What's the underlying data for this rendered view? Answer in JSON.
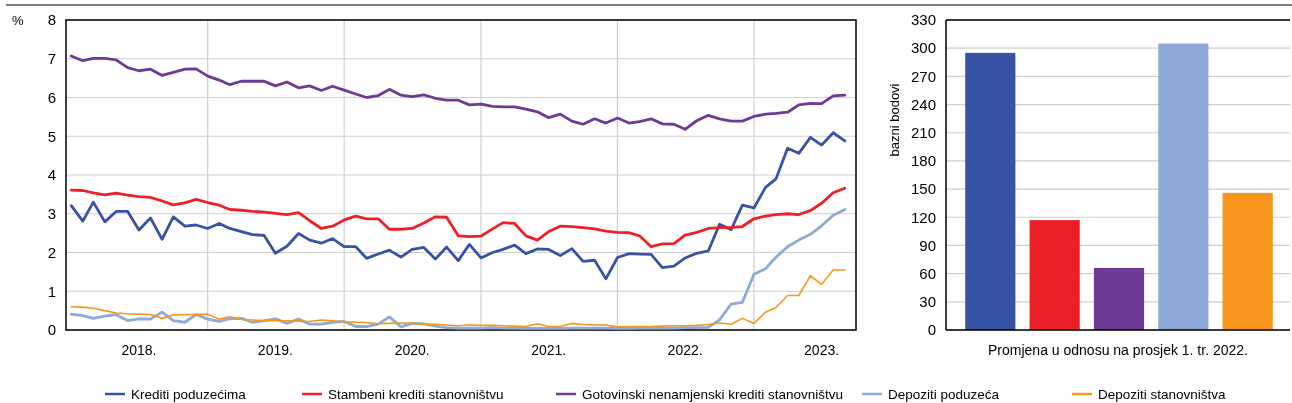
{
  "chart_data": [
    {
      "type": "line",
      "ylabel": "%",
      "legend": "bottom",
      "grid": true,
      "x": [
        "2018-01",
        "2018-02",
        "2018-03",
        "2018-04",
        "2018-05",
        "2018-06",
        "2018-07",
        "2018-08",
        "2018-09",
        "2018-10",
        "2018-11",
        "2018-12",
        "2019-01",
        "2019-02",
        "2019-03",
        "2019-04",
        "2019-05",
        "2019-06",
        "2019-07",
        "2019-08",
        "2019-09",
        "2019-10",
        "2019-11",
        "2019-12",
        "2020-01",
        "2020-02",
        "2020-03",
        "2020-04",
        "2020-05",
        "2020-06",
        "2020-07",
        "2020-08",
        "2020-09",
        "2020-10",
        "2020-11",
        "2020-12",
        "2021-01",
        "2021-02",
        "2021-03",
        "2021-04",
        "2021-05",
        "2021-06",
        "2021-07",
        "2021-08",
        "2021-09",
        "2021-10",
        "2021-11",
        "2021-12",
        "2022-01",
        "2022-02",
        "2022-03",
        "2022-04",
        "2022-05",
        "2022-06",
        "2022-07",
        "2022-08",
        "2022-09",
        "2022-10",
        "2022-11",
        "2022-12",
        "2023-01",
        "2023-02",
        "2023-03",
        "2023-04",
        "2023-05",
        "2023-06",
        "2023-07",
        "2023-08",
        "2023-09"
      ],
      "xlim": [
        "2017-12-18",
        "2023-10-01"
      ],
      "xticks": [
        {
          "value": "2018-07-01",
          "label": "2018."
        },
        {
          "value": "2019-01-01",
          "label": null
        },
        {
          "value": "2019-07-01",
          "label": "2019."
        },
        {
          "value": "2020-01-01",
          "label": null
        },
        {
          "value": "2020-07-01",
          "label": "2020."
        },
        {
          "value": "2021-01-01",
          "label": null
        },
        {
          "value": "2021-07-01",
          "label": "2021."
        },
        {
          "value": "2022-01-01",
          "label": null
        },
        {
          "value": "2022-07-01",
          "label": "2022."
        },
        {
          "value": "2023-01-01",
          "label": null
        },
        {
          "value": "2023-07-01",
          "label": "2023."
        }
      ],
      "ylim": [
        0,
        8
      ],
      "yticks": [
        0,
        1,
        2,
        3,
        4,
        5,
        6,
        7,
        8
      ],
      "series": [
        {
          "name": "Krediti poduzećima",
          "color": "#3853a4",
          "values": [
            3.21,
            2.81,
            3.3,
            2.79,
            3.06,
            3.06,
            2.58,
            2.89,
            2.34,
            2.92,
            2.68,
            2.71,
            2.62,
            2.75,
            2.62,
            2.54,
            2.46,
            2.44,
            1.98,
            2.16,
            2.49,
            2.32,
            2.24,
            2.36,
            2.15,
            2.15,
            1.85,
            1.96,
            2.06,
            1.88,
            2.08,
            2.13,
            1.83,
            2.14,
            1.79,
            2.21,
            1.86,
            2.0,
            2.08,
            2.19,
            1.97,
            2.09,
            2.08,
            1.92,
            2.1,
            1.77,
            1.8,
            1.32,
            1.87,
            1.97,
            1.96,
            1.95,
            1.61,
            1.65,
            1.86,
            1.98,
            2.04,
            2.73,
            2.59,
            3.22,
            3.15,
            3.68,
            3.9,
            4.69,
            4.56,
            4.97,
            4.77,
            5.09,
            4.88
          ]
        },
        {
          "name": "Stambeni krediti stanovništvu",
          "color": "#ed2027",
          "values": [
            3.61,
            3.6,
            3.54,
            3.49,
            3.53,
            3.48,
            3.44,
            3.42,
            3.33,
            3.23,
            3.28,
            3.37,
            3.29,
            3.22,
            3.11,
            3.09,
            3.06,
            3.04,
            3.01,
            2.98,
            3.03,
            2.82,
            2.62,
            2.68,
            2.84,
            2.94,
            2.87,
            2.87,
            2.6,
            2.6,
            2.62,
            2.76,
            2.92,
            2.91,
            2.43,
            2.41,
            2.42,
            2.61,
            2.77,
            2.75,
            2.43,
            2.32,
            2.54,
            2.68,
            2.67,
            2.64,
            2.61,
            2.55,
            2.52,
            2.51,
            2.43,
            2.15,
            2.22,
            2.23,
            2.45,
            2.52,
            2.62,
            2.64,
            2.65,
            2.67,
            2.87,
            2.94,
            2.98,
            3.0,
            2.98,
            3.08,
            3.27,
            3.54,
            3.66
          ]
        },
        {
          "name": "Gotovinski nenamjenski krediti stanovništvu",
          "color": "#6f3a96",
          "values": [
            7.07,
            6.95,
            7.01,
            7.01,
            6.97,
            6.77,
            6.69,
            6.73,
            6.57,
            6.65,
            6.73,
            6.74,
            6.55,
            6.45,
            6.33,
            6.42,
            6.42,
            6.42,
            6.3,
            6.4,
            6.25,
            6.3,
            6.18,
            6.29,
            6.19,
            6.09,
            6.0,
            6.05,
            6.21,
            6.06,
            6.02,
            6.07,
            5.98,
            5.93,
            5.93,
            5.81,
            5.83,
            5.77,
            5.76,
            5.76,
            5.7,
            5.63,
            5.48,
            5.57,
            5.39,
            5.31,
            5.45,
            5.34,
            5.47,
            5.34,
            5.38,
            5.45,
            5.32,
            5.31,
            5.18,
            5.4,
            5.54,
            5.45,
            5.39,
            5.39,
            5.51,
            5.57,
            5.59,
            5.62,
            5.81,
            5.85,
            5.84,
            6.04,
            6.06
          ]
        },
        {
          "name": "Depoziti poduzeća",
          "color": "#8faad6",
          "values": [
            0.41,
            0.37,
            0.3,
            0.36,
            0.4,
            0.24,
            0.29,
            0.28,
            0.46,
            0.24,
            0.2,
            0.4,
            0.28,
            0.22,
            0.29,
            0.3,
            0.2,
            0.24,
            0.29,
            0.17,
            0.28,
            0.15,
            0.15,
            0.2,
            0.22,
            0.09,
            0.09,
            0.15,
            0.34,
            0.08,
            0.17,
            0.16,
            0.1,
            0.06,
            0.05,
            0.05,
            0.05,
            0.06,
            0.05,
            0.05,
            0.04,
            0.04,
            0.04,
            0.04,
            0.05,
            0.05,
            0.05,
            0.05,
            0.04,
            0.04,
            0.05,
            0.05,
            0.05,
            0.05,
            0.06,
            0.06,
            0.07,
            0.26,
            0.67,
            0.71,
            1.44,
            1.58,
            1.88,
            2.15,
            2.32,
            2.47,
            2.69,
            2.96,
            3.11
          ]
        },
        {
          "name": "Depoziti stanovništva",
          "color": "#f7971d",
          "values": [
            0.6,
            0.59,
            0.56,
            0.5,
            0.44,
            0.42,
            0.41,
            0.4,
            0.3,
            0.39,
            0.4,
            0.4,
            0.41,
            0.28,
            0.34,
            0.27,
            0.26,
            0.24,
            0.24,
            0.24,
            0.23,
            0.22,
            0.26,
            0.24,
            0.21,
            0.2,
            0.19,
            0.16,
            0.17,
            0.18,
            0.17,
            0.15,
            0.15,
            0.13,
            0.11,
            0.13,
            0.12,
            0.12,
            0.11,
            0.1,
            0.09,
            0.16,
            0.09,
            0.09,
            0.17,
            0.14,
            0.13,
            0.13,
            0.08,
            0.09,
            0.09,
            0.09,
            0.1,
            0.11,
            0.11,
            0.12,
            0.14,
            0.18,
            0.15,
            0.3,
            0.17,
            0.46,
            0.58,
            0.89,
            0.89,
            1.4,
            1.18,
            1.55,
            1.55
          ]
        }
      ]
    },
    {
      "type": "bar",
      "xlabel": "Promjena u odnosu na prosjek 1. tr. 2022.",
      "ylabel": "bazni bodovi",
      "grid": "y",
      "categories": [
        null,
        null,
        null,
        null,
        null
      ],
      "values": [
        295,
        117,
        66,
        305,
        146
      ],
      "colors": [
        "#3853a4",
        "#ed2027",
        "#6f3a96",
        "#8faad6",
        "#f7971d"
      ],
      "ylim": [
        0,
        330
      ],
      "yticks": [
        0,
        30,
        60,
        90,
        120,
        150,
        180,
        210,
        240,
        270,
        300,
        330
      ]
    }
  ]
}
